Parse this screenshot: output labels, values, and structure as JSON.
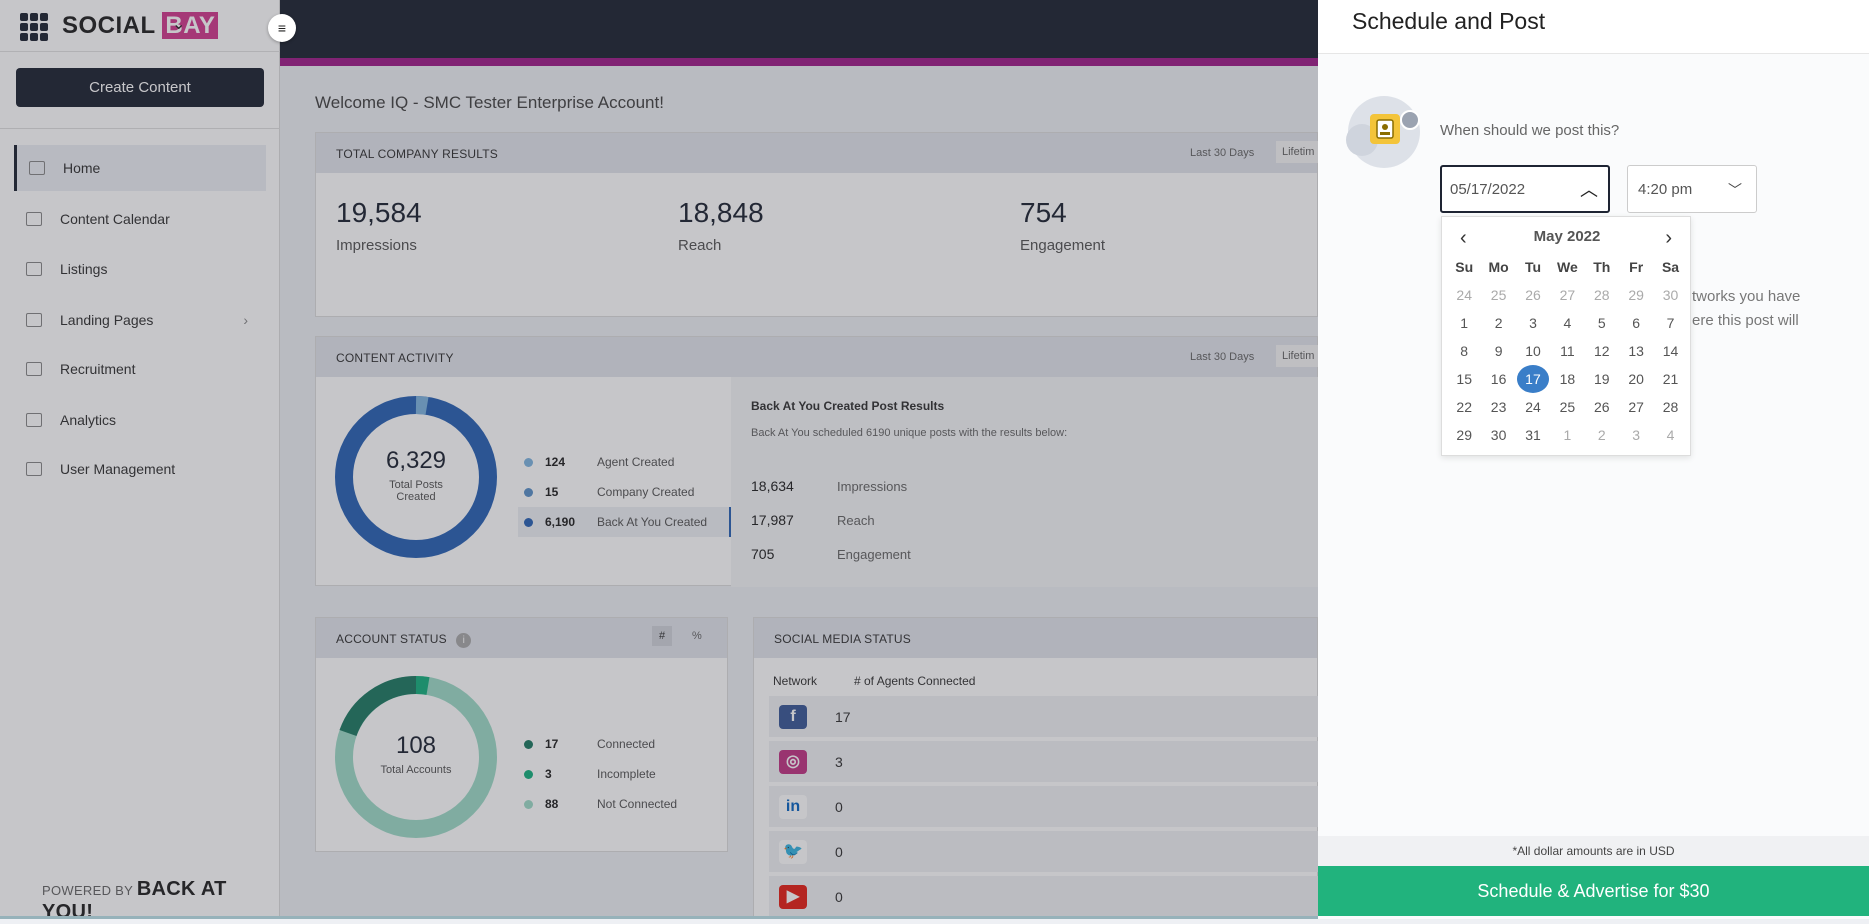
{
  "app": {
    "brand_a": "SOCIAL",
    "brand_b": "BAY",
    "collapse_glyph": "≡"
  },
  "sidebar": {
    "create_label": "Create Content",
    "items": [
      {
        "label": "Home",
        "icon": "home-icon",
        "active": true
      },
      {
        "label": "Content Calendar",
        "icon": "calendar-icon"
      },
      {
        "label": "Listings",
        "icon": "listings-icon"
      },
      {
        "label": "Landing Pages",
        "icon": "landing-pages-icon",
        "has_submenu": true
      },
      {
        "label": "Recruitment",
        "icon": "recruitment-icon"
      },
      {
        "label": "Analytics",
        "icon": "analytics-icon"
      },
      {
        "label": "User Management",
        "icon": "user-management-icon"
      }
    ],
    "powered_by": "POWERED BY",
    "powered_brand": "BACK AT YOU!"
  },
  "main": {
    "welcome": "Welcome IQ - SMC Tester Enterprise Account!",
    "total": {
      "title": "TOTAL COMPANY RESULTS",
      "range_a": "Last 30 Days",
      "range_b": "Lifetim",
      "kpis": [
        {
          "value": "19,584",
          "label": "Impressions"
        },
        {
          "value": "18,848",
          "label": "Reach"
        },
        {
          "value": "754",
          "label": "Engagement"
        }
      ]
    },
    "activity": {
      "title": "CONTENT ACTIVITY",
      "range_a": "Last 30 Days",
      "range_b": "Lifetim",
      "donut_value": "6,329",
      "donut_label_1": "Total Posts",
      "donut_label_2": "Created",
      "legend": [
        {
          "value": "124",
          "label": "Agent Created",
          "color": "#7fb4e0"
        },
        {
          "value": "15",
          "label": "Company Created",
          "color": "#5a90c8"
        },
        {
          "value": "6,190",
          "label": "Back At You Created",
          "color": "#2a63b5"
        }
      ],
      "results_title": "Back At You Created Post Results",
      "results_sub": "Back At You scheduled 6190 unique posts with the results below:",
      "results": [
        {
          "value": "18,634",
          "label": "Impressions"
        },
        {
          "value": "17,987",
          "label": "Reach"
        },
        {
          "value": "705",
          "label": "Engagement"
        }
      ]
    },
    "account": {
      "title": "ACCOUNT STATUS",
      "toggle_a": "#",
      "toggle_b": "%",
      "donut_value": "108",
      "donut_label": "Total Accounts",
      "legend": [
        {
          "value": "17",
          "label": "Connected",
          "color": "#1f7a63"
        },
        {
          "value": "3",
          "label": "Incomplete",
          "color": "#17b07e"
        },
        {
          "value": "88",
          "label": "Not Connected",
          "color": "#9fdcc8"
        }
      ]
    },
    "social": {
      "title": "SOCIAL MEDIA STATUS",
      "col_a": "Network",
      "col_b": "# of Agents Connected",
      "rows": [
        {
          "icon": "facebook-icon",
          "count": "17"
        },
        {
          "icon": "instagram-icon",
          "count": "3"
        },
        {
          "icon": "linkedin-icon",
          "count": "0"
        },
        {
          "icon": "twitter-icon",
          "count": "0"
        },
        {
          "icon": "youtube-icon",
          "count": "0"
        }
      ]
    }
  },
  "panel": {
    "title": "Schedule and Post",
    "question": "When should we post this?",
    "date_value": "05/17/2022",
    "time_value": "4:20 pm",
    "hidden_1": "tworks you have",
    "hidden_2": "ere this post will",
    "calendar": {
      "month": "May 2022",
      "prev": "‹",
      "next": "›",
      "dow": [
        "Su",
        "Mo",
        "Tu",
        "We",
        "Th",
        "Fr",
        "Sa"
      ],
      "weeks": [
        [
          "24",
          "25",
          "26",
          "27",
          "28",
          "29",
          "30"
        ],
        [
          "1",
          "2",
          "3",
          "4",
          "5",
          "6",
          "7"
        ],
        [
          "8",
          "9",
          "10",
          "11",
          "12",
          "13",
          "14"
        ],
        [
          "15",
          "16",
          "17",
          "18",
          "19",
          "20",
          "21"
        ],
        [
          "22",
          "23",
          "24",
          "25",
          "26",
          "27",
          "28"
        ],
        [
          "29",
          "30",
          "31",
          "1",
          "2",
          "3",
          "4"
        ]
      ],
      "selected": "17"
    },
    "footer_note": "*All dollar amounts are in USD",
    "cta_label": "Schedule & Advertise for $30"
  }
}
